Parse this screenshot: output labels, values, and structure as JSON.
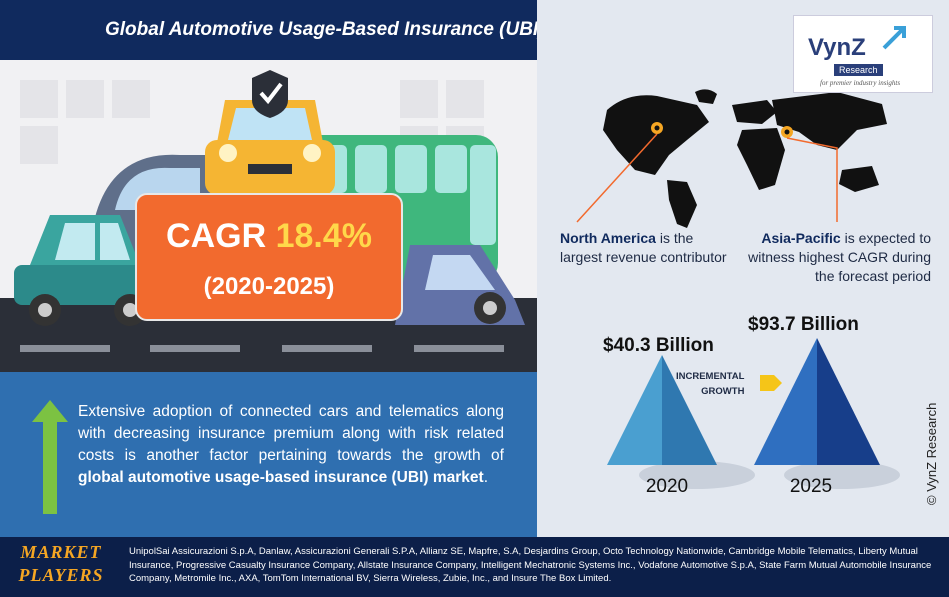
{
  "header": {
    "title": "Global Automotive Usage-Based Insurance (UBI) Market"
  },
  "logo": {
    "name": "VynZ",
    "badge": "Research",
    "tagline": "for premier industry insights"
  },
  "cagr": {
    "label": "CAGR",
    "value": "18.4%",
    "period": "(2020-2025)"
  },
  "description": {
    "text": "Extensive adoption of connected cars and telematics along with decreasing insurance premium along with risk related costs is another factor pertaining towards the growth of ",
    "bold": "global automotive usage-based insurance (UBI) market",
    "end": "."
  },
  "regions": {
    "north_america": {
      "name": "North America",
      "text": " is the largest revenue contributor"
    },
    "asia_pacific": {
      "name": "Asia-Pacific",
      "text": " is expected to witness highest CAGR during the forecast period"
    }
  },
  "growth": {
    "incremental_label_1": "INCREMENTAL",
    "incremental_label_2": "GROWTH",
    "values": [
      {
        "year": "2020",
        "label": "$40.3 Billion",
        "amount": 40.3
      },
      {
        "year": "2025",
        "label": "$93.7 Billion",
        "amount": 93.7
      }
    ]
  },
  "copyright": "© VynZ Research",
  "market_players": {
    "label_1": "MARKET",
    "label_2": "PLAYERS",
    "text": "UnipolSai Assicurazioni S.p.A, Danlaw, Assicurazioni Generali S.P.A, Allianz SE, Mapfre, S.A, Desjardins Group, Octo Technology Nationwide, Cambridge Mobile Telematics, Liberty Mutual Insurance, Progressive Casualty Insurance Company, Allstate Insurance Company, Intelligent Mechatronic Systems Inc., Vodafone Automotive S.p.A, State Farm Mutual Automobile Insurance Company, Metromile Inc., AXA, TomTom International BV, Sierra Wireless, Zubie, Inc., and Insure The Box Limited."
  },
  "colors": {
    "navy": "#102a5e",
    "orange": "#f26a2e",
    "blue": "#2f6fb0",
    "arrow_green": "#7cc242"
  }
}
